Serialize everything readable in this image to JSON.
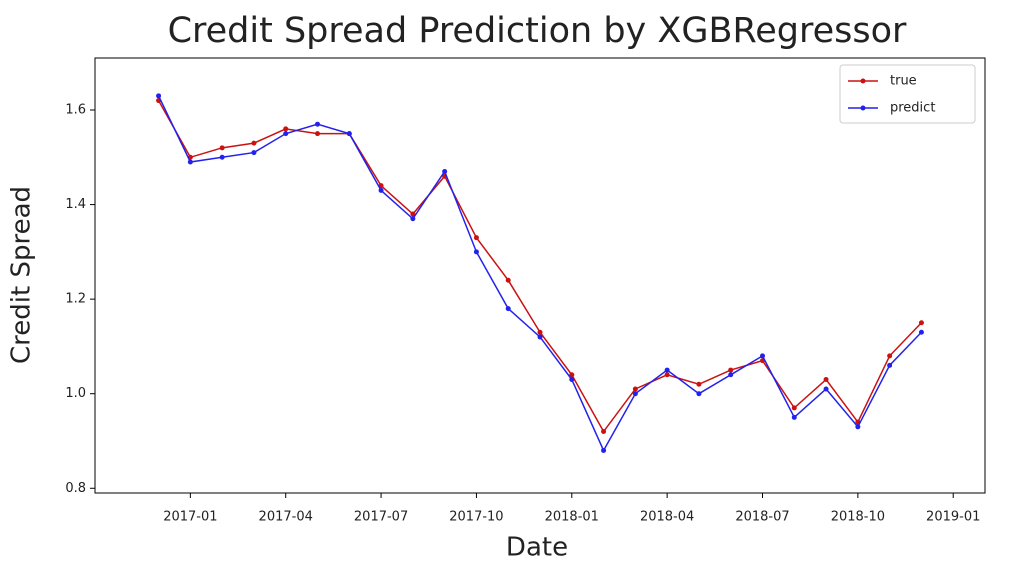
{
  "chart_data": {
    "type": "line",
    "title": "Credit Spread Prediction by XGBRegressor",
    "xlabel": "Date",
    "ylabel": "Credit Spread",
    "x": [
      "2016-12",
      "2017-01",
      "2017-02",
      "2017-03",
      "2017-04",
      "2017-05",
      "2017-06",
      "2017-07",
      "2017-08",
      "2017-09",
      "2017-10",
      "2017-11",
      "2017-12",
      "2018-01",
      "2018-02",
      "2018-03",
      "2018-04",
      "2018-05",
      "2018-06",
      "2018-07",
      "2018-08",
      "2018-09",
      "2018-10",
      "2018-11",
      "2018-12"
    ],
    "series": [
      {
        "name": "true",
        "color": "#cc1111",
        "values": [
          1.62,
          1.5,
          1.52,
          1.53,
          1.56,
          1.55,
          1.55,
          1.44,
          1.38,
          1.46,
          1.33,
          1.24,
          1.13,
          1.04,
          0.92,
          1.01,
          1.04,
          1.02,
          1.05,
          1.07,
          0.97,
          1.03,
          0.94,
          1.08,
          1.15
        ]
      },
      {
        "name": "predict",
        "color": "#2222ee",
        "values": [
          1.63,
          1.49,
          1.5,
          1.51,
          1.55,
          1.57,
          1.55,
          1.43,
          1.37,
          1.47,
          1.3,
          1.18,
          1.12,
          1.03,
          0.88,
          1.0,
          1.05,
          1.0,
          1.04,
          1.08,
          0.95,
          1.01,
          0.93,
          1.06,
          1.13
        ]
      }
    ],
    "xlim": [
      "2016-10",
      "2019-02"
    ],
    "xticks": [
      "2017-01",
      "2017-04",
      "2017-07",
      "2017-10",
      "2018-01",
      "2018-04",
      "2018-07",
      "2018-10",
      "2019-01"
    ],
    "ylim": [
      0.79,
      1.71
    ],
    "yticks": [
      0.8,
      {
        "value": 1,
        "label": "1.0"
      },
      1.2,
      1.4,
      1.6
    ],
    "legend": "upper right"
  }
}
